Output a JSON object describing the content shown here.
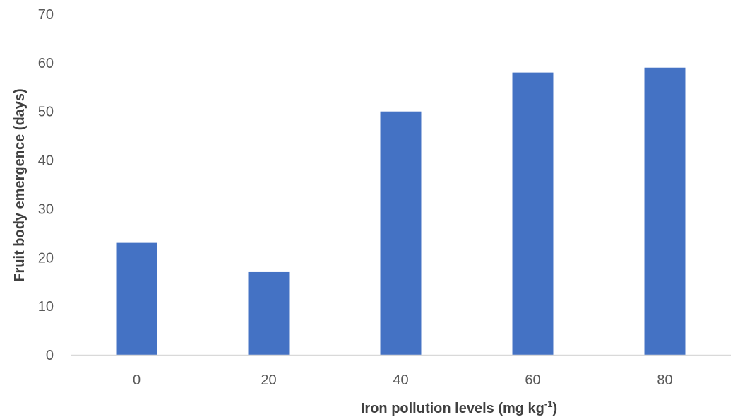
{
  "chart_data": {
    "type": "bar",
    "categories": [
      "0",
      "20",
      "40",
      "60",
      "80"
    ],
    "values": [
      23,
      17,
      50,
      58,
      59
    ],
    "title": "",
    "xlabel": "Iron pollution levels (mg kg",
    "xlabel_sup": "-1",
    "xlabel_suffix": ")",
    "ylabel": "Fruit body emergence (days)",
    "ylim": [
      0,
      70
    ],
    "yticks": [
      "0",
      "10",
      "20",
      "30",
      "40",
      "50",
      "60",
      "70"
    ],
    "grid": false,
    "legend": "none",
    "bar_color": "#4472C4",
    "axis_color": "#D9D9D9"
  }
}
